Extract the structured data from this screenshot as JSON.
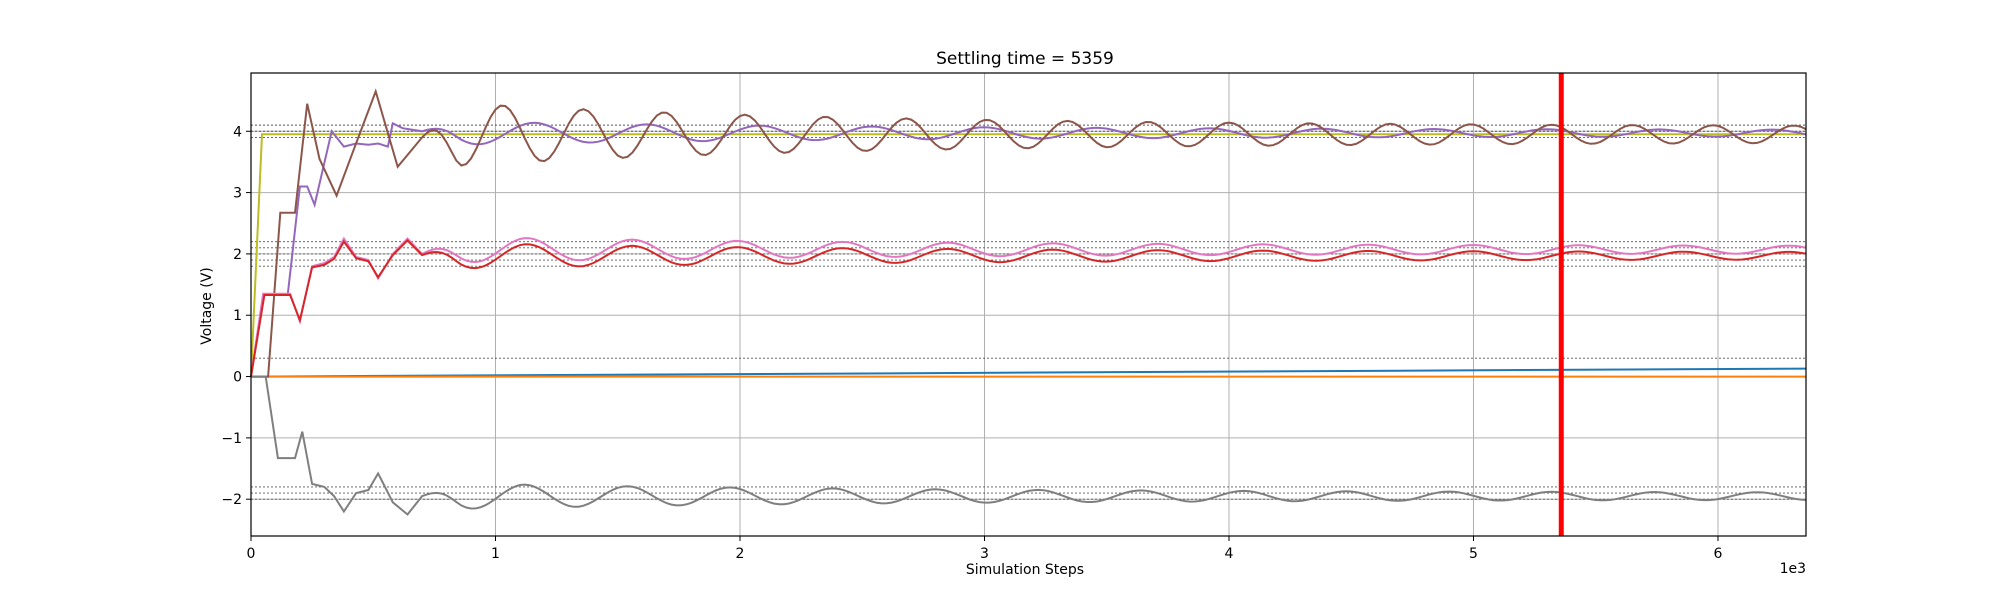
{
  "chart_data": {
    "type": "line",
    "title": "Settling time = 5359",
    "xlabel": "Simulation Steps",
    "ylabel": "Voltage (V)",
    "x_scale_label": "1e3",
    "xlim": [
      0,
      6360
    ],
    "ylim": [
      -2.6,
      4.95
    ],
    "grid": true,
    "x_ticks": [
      0,
      1000,
      2000,
      3000,
      4000,
      5000,
      6000
    ],
    "x_tick_labels": [
      "0",
      "1",
      "2",
      "3",
      "4",
      "5",
      "6"
    ],
    "y_ticks": [
      -2,
      -1,
      0,
      1,
      2,
      3,
      4
    ],
    "y_tick_labels": [
      "−2",
      "−1",
      "0",
      "1",
      "2",
      "3",
      "4"
    ],
    "settling_time": 5359,
    "settling_line_color": "#ff0000",
    "threshold_lines": [
      4.1,
      4.0,
      3.9,
      2.2,
      2.1,
      2.0,
      1.9,
      1.8,
      0.3,
      -1.8,
      -1.9,
      -2.0
    ],
    "series": [
      {
        "color": "#1f77b4",
        "kind": "ramp",
        "start_x": 0,
        "start_y": 0.0,
        "end_x": 6360,
        "end_y": 0.13
      },
      {
        "color": "#ff7f0e",
        "kind": "ramp",
        "start_x": 0,
        "start_y": 0.0,
        "end_x": 6360,
        "end_y": 0.0
      },
      {
        "color": "#bcbd22",
        "kind": "step",
        "rise_start": 0,
        "rise_end": 45,
        "level": 3.95
      },
      {
        "color": "#9467bd",
        "kind": "osc",
        "delay": 50,
        "final": 3.97,
        "amp": 0.2,
        "period": 460,
        "decay": 2600,
        "early": [
          [
            0,
            0
          ],
          [
            50,
            1.33
          ],
          [
            150,
            1.33
          ],
          [
            200,
            3.1
          ],
          [
            230,
            3.1
          ],
          [
            260,
            2.8
          ],
          [
            330,
            4.0
          ],
          [
            380,
            3.75
          ],
          [
            430,
            3.8
          ],
          [
            480,
            3.78
          ],
          [
            520,
            3.8
          ],
          [
            560,
            3.75
          ],
          [
            580,
            4.13
          ],
          [
            620,
            4.05
          ],
          [
            700,
            4.0
          ]
        ]
      },
      {
        "color": "#8c564b",
        "kind": "osc",
        "delay": 70,
        "final": 3.95,
        "amp": 0.55,
        "period": 330,
        "decay": 2200,
        "early": [
          [
            0,
            0
          ],
          [
            70,
            0
          ],
          [
            120,
            2.67
          ],
          [
            180,
            2.67
          ],
          [
            230,
            4.45
          ],
          [
            280,
            3.55
          ],
          [
            350,
            2.95
          ],
          [
            420,
            3.7
          ],
          [
            510,
            4.65
          ],
          [
            600,
            3.42
          ],
          [
            700,
            3.9
          ]
        ]
      },
      {
        "color": "#e377c2",
        "kind": "osc",
        "delay": 50,
        "final": 2.07,
        "amp": 0.22,
        "period": 430,
        "decay": 2800,
        "early": [
          [
            0,
            0
          ],
          [
            50,
            1.35
          ],
          [
            160,
            1.35
          ],
          [
            200,
            0.9
          ],
          [
            250,
            1.8
          ],
          [
            300,
            1.85
          ],
          [
            340,
            1.95
          ],
          [
            380,
            2.25
          ],
          [
            430,
            1.95
          ],
          [
            480,
            1.9
          ],
          [
            520,
            1.6
          ],
          [
            580,
            2.0
          ],
          [
            640,
            2.25
          ],
          [
            700,
            2.0
          ]
        ]
      },
      {
        "color": "#d62728",
        "kind": "osc",
        "delay": 55,
        "final": 1.97,
        "amp": 0.22,
        "period": 430,
        "decay": 2700,
        "early": [
          [
            0,
            0
          ],
          [
            55,
            1.33
          ],
          [
            160,
            1.33
          ],
          [
            200,
            0.92
          ],
          [
            250,
            1.78
          ],
          [
            300,
            1.82
          ],
          [
            340,
            1.92
          ],
          [
            380,
            2.2
          ],
          [
            430,
            1.93
          ],
          [
            480,
            1.88
          ],
          [
            520,
            1.62
          ],
          [
            580,
            1.98
          ],
          [
            640,
            2.22
          ],
          [
            700,
            1.98
          ]
        ]
      },
      {
        "color": "#7f7f7f",
        "kind": "osc",
        "delay": 60,
        "final": -1.95,
        "amp": 0.22,
        "period": 420,
        "decay": 2700,
        "early": [
          [
            0,
            0
          ],
          [
            60,
            0
          ],
          [
            110,
            -1.33
          ],
          [
            180,
            -1.33
          ],
          [
            210,
            -0.9
          ],
          [
            250,
            -1.75
          ],
          [
            300,
            -1.8
          ],
          [
            340,
            -1.95
          ],
          [
            380,
            -2.2
          ],
          [
            430,
            -1.9
          ],
          [
            480,
            -1.85
          ],
          [
            520,
            -1.58
          ],
          [
            580,
            -2.05
          ],
          [
            640,
            -2.25
          ],
          [
            700,
            -1.95
          ]
        ]
      }
    ]
  }
}
